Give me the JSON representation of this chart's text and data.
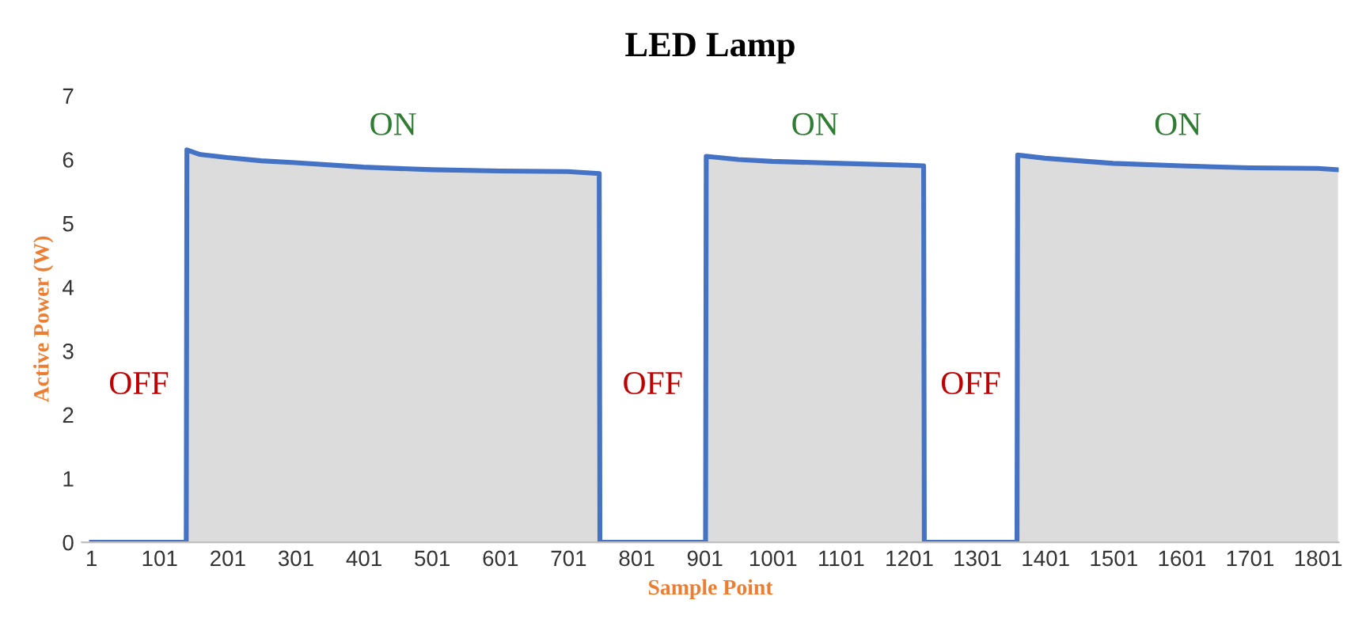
{
  "chart_data": {
    "type": "area",
    "title": "LED Lamp",
    "xlabel": "Sample Point",
    "ylabel": "Active Power (W)",
    "xlim": [
      -13,
      1831
    ],
    "xticks": [
      1,
      101,
      201,
      301,
      401,
      501,
      601,
      701,
      801,
      901,
      1001,
      1101,
      1201,
      1301,
      1401,
      1501,
      1601,
      1701,
      1801
    ],
    "ylim": [
      0,
      7
    ],
    "yticks": [
      0,
      1,
      2,
      3,
      4,
      5,
      6,
      7
    ],
    "grid": false,
    "legend": false,
    "series": [
      {
        "color": "#4472c4",
        "x": [
          1,
          140,
          141,
          160,
          200,
          250,
          300,
          400,
          500,
          600,
          700,
          746,
          747,
          902,
          903,
          950,
          1000,
          1100,
          1200,
          1222,
          1223,
          1359,
          1360,
          1400,
          1500,
          1600,
          1700,
          1800,
          1830
        ],
        "values": [
          0,
          0,
          6.15,
          6.08,
          6.03,
          5.98,
          5.95,
          5.88,
          5.84,
          5.82,
          5.81,
          5.78,
          0,
          0,
          6.05,
          6.0,
          5.97,
          5.94,
          5.91,
          5.9,
          0,
          0,
          6.07,
          6.02,
          5.94,
          5.9,
          5.87,
          5.86,
          5.84
        ]
      }
    ],
    "annotations": [
      "OFF",
      "ON",
      "OFF",
      "ON",
      "OFF",
      "ON"
    ]
  }
}
